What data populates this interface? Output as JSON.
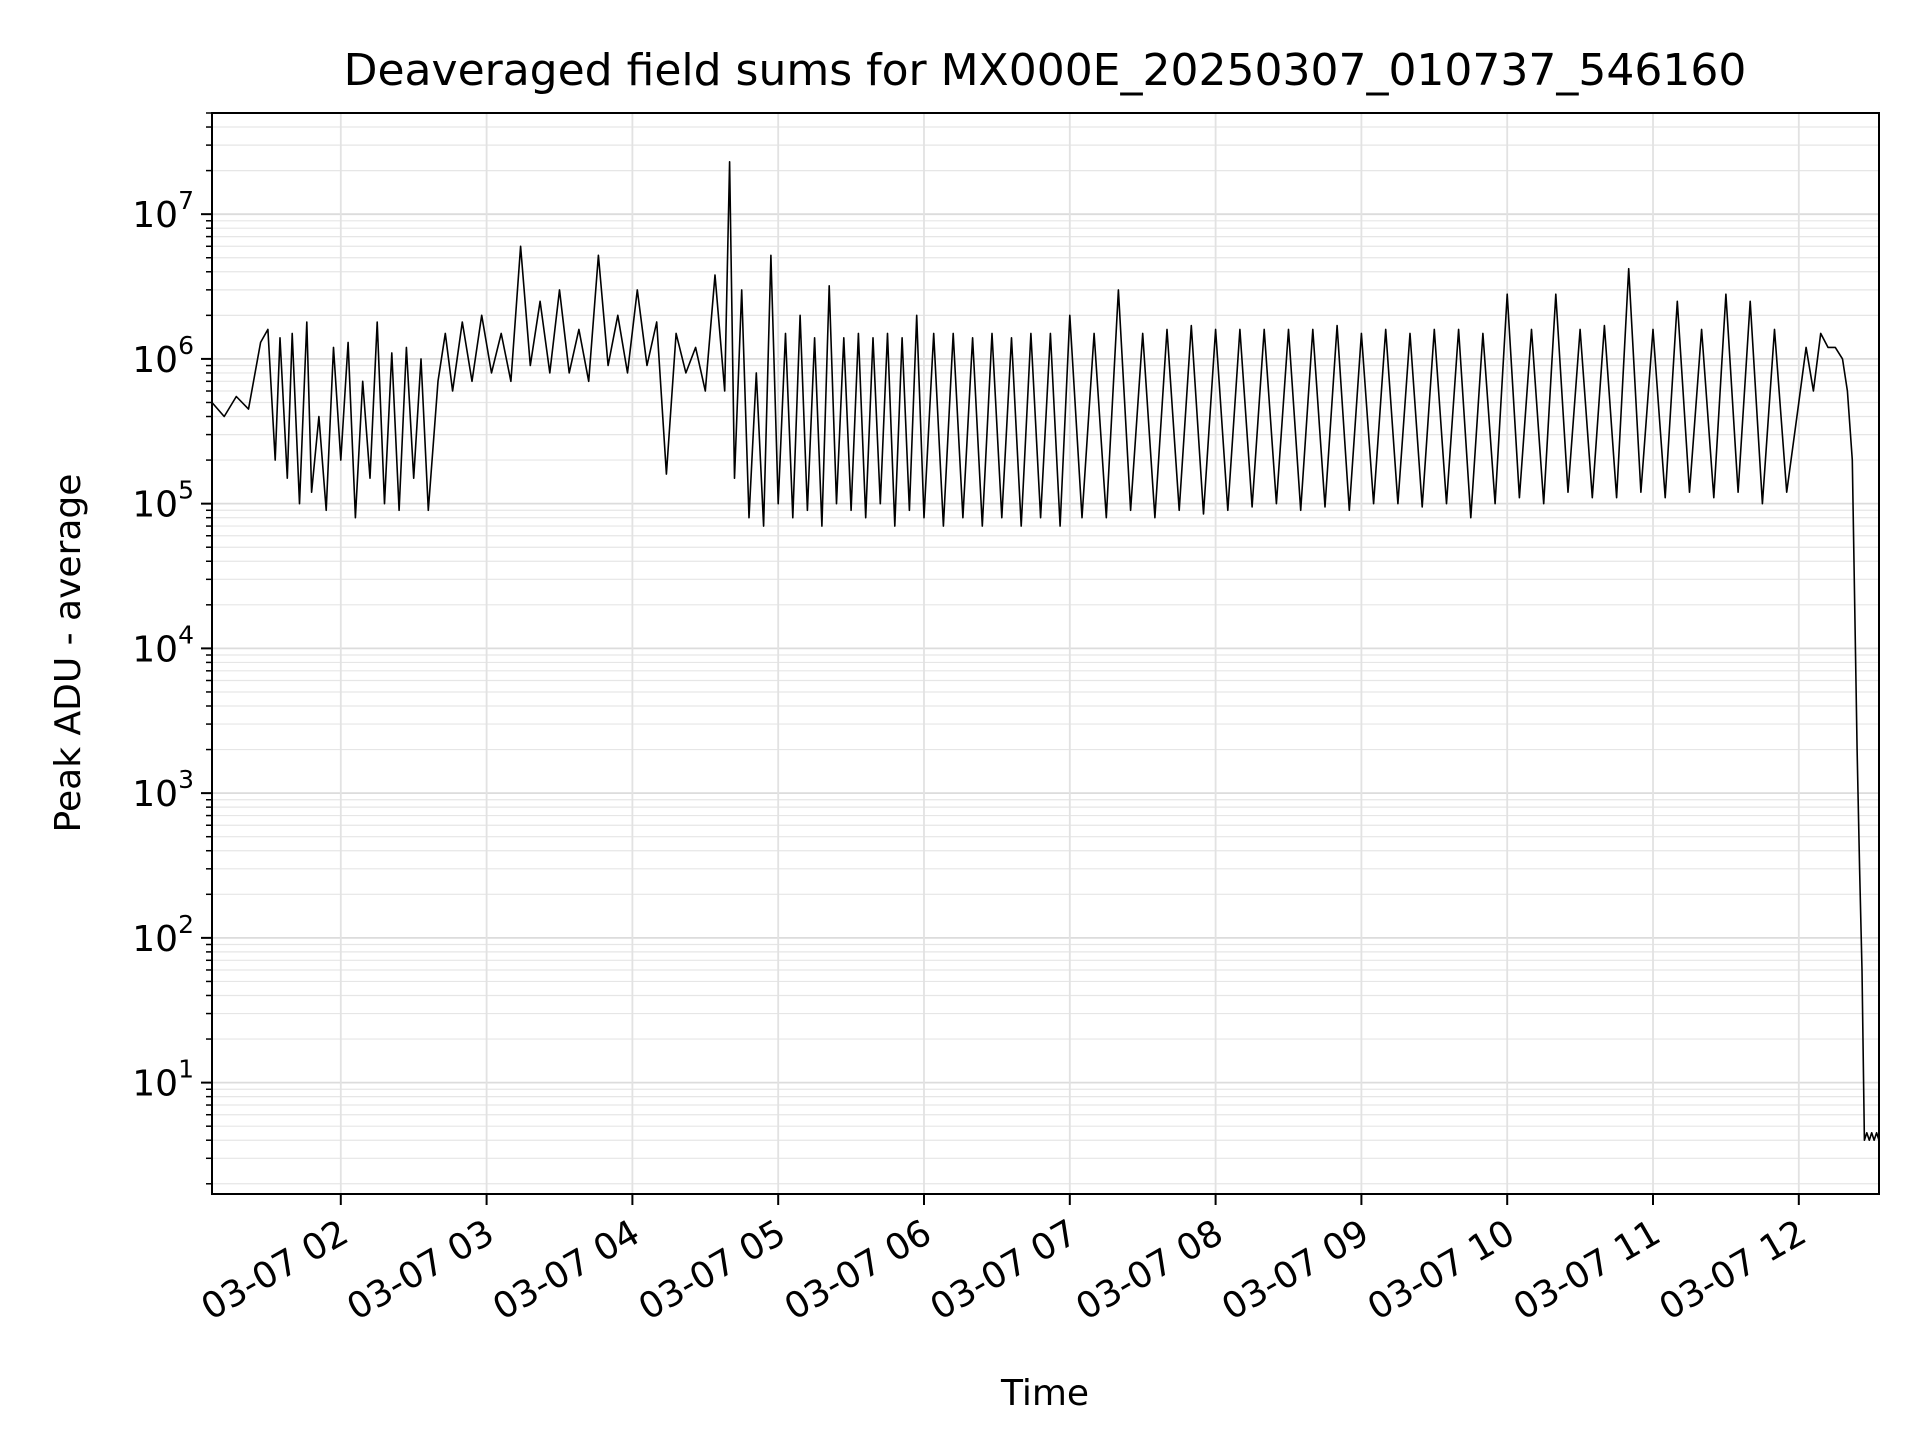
{
  "chart_data": {
    "type": "line",
    "title": "Deaveraged field sums for MX000E_20250307_010737_546160",
    "xlabel": "Time",
    "ylabel": "Peak ADU - average",
    "yscale": "log",
    "ylim": [
      1.7,
      50000000
    ],
    "xlim": [
      "03-07 01:07",
      "03-07 12:33"
    ],
    "grid": "major and minor, light gray",
    "line_color": "#000000",
    "x_ticks": [
      "03-07 02",
      "03-07 03",
      "03-07 04",
      "03-07 05",
      "03-07 06",
      "03-07 07",
      "03-07 08",
      "03-07 09",
      "03-07 10",
      "03-07 11",
      "03-07 12"
    ],
    "y_ticks": [
      {
        "base": "10",
        "exp": "1",
        "value": 10
      },
      {
        "base": "10",
        "exp": "2",
        "value": 100
      },
      {
        "base": "10",
        "exp": "3",
        "value": 1000
      },
      {
        "base": "10",
        "exp": "4",
        "value": 10000
      },
      {
        "base": "10",
        "exp": "5",
        "value": 100000
      },
      {
        "base": "10",
        "exp": "6",
        "value": 1000000
      },
      {
        "base": "10",
        "exp": "7",
        "value": 10000000
      }
    ],
    "series": [
      {
        "x": [
          "03-07 01:07",
          "03-07 01:12",
          "03-07 01:17",
          "03-07 01:22",
          "03-07 01:27",
          "03-07 01:30",
          "03-07 01:33",
          "03-07 01:35",
          "03-07 01:38",
          "03-07 01:40",
          "03-07 01:43",
          "03-07 01:46",
          "03-07 01:48",
          "03-07 01:51",
          "03-07 01:54",
          "03-07 01:57",
          "03-07 02:00",
          "03-07 02:03",
          "03-07 02:06",
          "03-07 02:09",
          "03-07 02:12",
          "03-07 02:15",
          "03-07 02:18",
          "03-07 02:21",
          "03-07 02:24",
          "03-07 02:27",
          "03-07 02:30",
          "03-07 02:33",
          "03-07 02:36",
          "03-07 02:40",
          "03-07 02:43",
          "03-07 02:46",
          "03-07 02:50",
          "03-07 02:54",
          "03-07 02:58",
          "03-07 03:02",
          "03-07 03:06",
          "03-07 03:10",
          "03-07 03:14",
          "03-07 03:18",
          "03-07 03:22",
          "03-07 03:26",
          "03-07 03:30",
          "03-07 03:34",
          "03-07 03:38",
          "03-07 03:42",
          "03-07 03:46",
          "03-07 03:50",
          "03-07 03:54",
          "03-07 03:58",
          "03-07 04:02",
          "03-07 04:06",
          "03-07 04:10",
          "03-07 04:14",
          "03-07 04:18",
          "03-07 04:22",
          "03-07 04:26",
          "03-07 04:30",
          "03-07 04:34",
          "03-07 04:38",
          "03-07 04:40",
          "03-07 04:42",
          "03-07 04:45",
          "03-07 04:48",
          "03-07 04:51",
          "03-07 04:54",
          "03-07 04:57",
          "03-07 05:00",
          "03-07 05:03",
          "03-07 05:06",
          "03-07 05:09",
          "03-07 05:12",
          "03-07 05:15",
          "03-07 05:18",
          "03-07 05:21",
          "03-07 05:24",
          "03-07 05:27",
          "03-07 05:30",
          "03-07 05:33",
          "03-07 05:36",
          "03-07 05:39",
          "03-07 05:42",
          "03-07 05:45",
          "03-07 05:48",
          "03-07 05:51",
          "03-07 05:54",
          "03-07 05:57",
          "03-07 06:00",
          "03-07 06:04",
          "03-07 06:08",
          "03-07 06:12",
          "03-07 06:16",
          "03-07 06:20",
          "03-07 06:24",
          "03-07 06:28",
          "03-07 06:32",
          "03-07 06:36",
          "03-07 06:40",
          "03-07 06:44",
          "03-07 06:48",
          "03-07 06:52",
          "03-07 06:56",
          "03-07 07:00",
          "03-07 07:05",
          "03-07 07:10",
          "03-07 07:15",
          "03-07 07:20",
          "03-07 07:25",
          "03-07 07:30",
          "03-07 07:35",
          "03-07 07:40",
          "03-07 07:45",
          "03-07 07:50",
          "03-07 07:55",
          "03-07 08:00",
          "03-07 08:05",
          "03-07 08:10",
          "03-07 08:15",
          "03-07 08:20",
          "03-07 08:25",
          "03-07 08:30",
          "03-07 08:35",
          "03-07 08:40",
          "03-07 08:45",
          "03-07 08:50",
          "03-07 08:55",
          "03-07 09:00",
          "03-07 09:05",
          "03-07 09:10",
          "03-07 09:15",
          "03-07 09:20",
          "03-07 09:25",
          "03-07 09:30",
          "03-07 09:35",
          "03-07 09:40",
          "03-07 09:45",
          "03-07 09:50",
          "03-07 09:55",
          "03-07 10:00",
          "03-07 10:05",
          "03-07 10:10",
          "03-07 10:15",
          "03-07 10:20",
          "03-07 10:25",
          "03-07 10:30",
          "03-07 10:35",
          "03-07 10:40",
          "03-07 10:45",
          "03-07 10:50",
          "03-07 10:55",
          "03-07 11:00",
          "03-07 11:05",
          "03-07 11:10",
          "03-07 11:15",
          "03-07 11:20",
          "03-07 11:25",
          "03-07 11:30",
          "03-07 11:35",
          "03-07 11:40",
          "03-07 11:45",
          "03-07 11:50",
          "03-07 11:55",
          "03-07 12:00",
          "03-07 12:03",
          "03-07 12:06",
          "03-07 12:09",
          "03-07 12:12",
          "03-07 12:15",
          "03-07 12:18",
          "03-07 12:20",
          "03-07 12:22",
          "03-07 12:24",
          "03-07 12:25",
          "03-07 12:26",
          "03-07 12:27",
          "03-07 12:28",
          "03-07 12:29",
          "03-07 12:30",
          "03-07 12:31",
          "03-07 12:32",
          "03-07 12:33"
        ],
        "y": [
          500000,
          400000,
          550000,
          450000,
          1300000,
          1600000,
          200000,
          1400000,
          150000,
          1500000,
          100000,
          1800000,
          120000,
          400000,
          90000,
          1200000,
          200000,
          1300000,
          80000,
          700000,
          150000,
          1800000,
          100000,
          1100000,
          90000,
          1200000,
          150000,
          1000000,
          90000,
          700000,
          1500000,
          600000,
          1800000,
          700000,
          2000000,
          800000,
          1500000,
          700000,
          6000000,
          900000,
          2500000,
          800000,
          3000000,
          800000,
          1600000,
          700000,
          5200000,
          900000,
          2000000,
          800000,
          3000000,
          900000,
          1800000,
          160000,
          1500000,
          800000,
          1200000,
          600000,
          3800000,
          600000,
          23000000,
          150000,
          3000000,
          80000,
          800000,
          70000,
          5200000,
          100000,
          1500000,
          80000,
          2000000,
          90000,
          1400000,
          70000,
          3200000,
          100000,
          1400000,
          90000,
          1500000,
          80000,
          1400000,
          100000,
          1500000,
          70000,
          1400000,
          90000,
          2000000,
          80000,
          1500000,
          70000,
          1500000,
          80000,
          1400000,
          70000,
          1500000,
          80000,
          1400000,
          70000,
          1500000,
          80000,
          1500000,
          70000,
          2000000,
          80000,
          1500000,
          80000,
          3000000,
          90000,
          1500000,
          80000,
          1600000,
          90000,
          1700000,
          85000,
          1600000,
          90000,
          1600000,
          95000,
          1600000,
          100000,
          1600000,
          90000,
          1600000,
          95000,
          1700000,
          90000,
          1500000,
          100000,
          1600000,
          100000,
          1500000,
          95000,
          1600000,
          100000,
          1600000,
          80000,
          1500000,
          100000,
          2800000,
          110000,
          1600000,
          100000,
          2800000,
          120000,
          1600000,
          110000,
          1700000,
          110000,
          4200000,
          120000,
          1600000,
          110000,
          2500000,
          120000,
          1600000,
          110000,
          2800000,
          120000,
          2500000,
          100000,
          1600000,
          120000,
          500000,
          1200000,
          600000,
          1500000,
          1200000,
          1200000,
          1000000,
          600000,
          200000,
          2000,
          300,
          60,
          4,
          4.5,
          4,
          4.5,
          4,
          4.5,
          4
        ]
      }
    ]
  }
}
